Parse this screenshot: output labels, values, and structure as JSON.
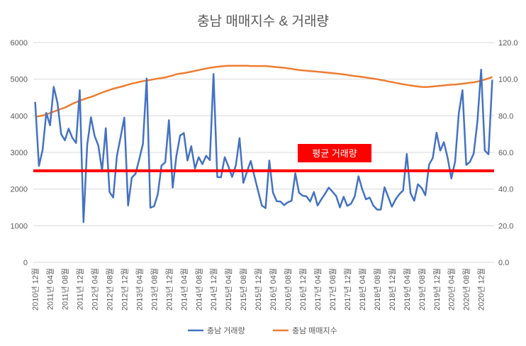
{
  "chart_data": {
    "type": "line",
    "title": "충남 매매지수 & 거래량",
    "x_tick_labels": [
      "2010년 12월",
      "2011년 04월",
      "2011년 08월",
      "2011년 12월",
      "2012년 04월",
      "2012년 08월",
      "2012년 12월",
      "2013년 04월",
      "2013년 08월",
      "2013년 12월",
      "2014년 04월",
      "2014년 08월",
      "2014년 12월",
      "2015년 04월",
      "2015년 08월",
      "2015년 12월",
      "2016년 04월",
      "2016년 08월",
      "2016년 12월",
      "2017년 04월",
      "2017년 08월",
      "2017년 12월",
      "2018년 04월",
      "2018년 08월",
      "2018년 12월",
      "2019년 04월",
      "2019년 08월",
      "2019년 12월",
      "2020년 04월",
      "2020년 08월",
      "2020년 12월"
    ],
    "y_left": {
      "ticks": [
        "0",
        "1000",
        "2000",
        "3000",
        "4000",
        "5000",
        "6000"
      ],
      "ylim": [
        0,
        6000
      ]
    },
    "y_right": {
      "ticks": [
        "0.0",
        "20.0",
        "40.0",
        "60.0",
        "80.0",
        "100.0",
        "120.0"
      ],
      "ylim": [
        0,
        120
      ]
    },
    "series": [
      {
        "name": "충남 거래량",
        "axis": "left",
        "color": "#4472C4",
        "values": [
          4380,
          2630,
          3070,
          4080,
          3740,
          4790,
          4350,
          3500,
          3330,
          3650,
          3400,
          3260,
          4700,
          1100,
          3200,
          3960,
          3450,
          3190,
          2500,
          3660,
          1920,
          1770,
          2900,
          3430,
          3950,
          1550,
          2310,
          2420,
          2810,
          3230,
          5020,
          1490,
          1530,
          1860,
          2640,
          2730,
          3880,
          2040,
          2900,
          3460,
          3530,
          2780,
          3170,
          2560,
          2870,
          2680,
          2910,
          2790,
          5140,
          2330,
          2320,
          2870,
          2620,
          2330,
          2650,
          3390,
          2170,
          2470,
          2770,
          2350,
          1950,
          1550,
          1480,
          2780,
          1900,
          1670,
          1660,
          1560,
          1640,
          1680,
          2430,
          1900,
          1820,
          1800,
          1660,
          1920,
          1550,
          1720,
          1870,
          2040,
          1930,
          1810,
          1500,
          1790,
          1540,
          1600,
          1800,
          2350,
          2000,
          1720,
          1770,
          1550,
          1440,
          1440,
          2050,
          1790,
          1520,
          1720,
          1860,
          1960,
          2960,
          1890,
          1680,
          2130,
          2030,
          1830,
          2670,
          2850,
          3540,
          3050,
          3280,
          2850,
          2290,
          2750,
          4070,
          4700,
          2660,
          2740,
          2970,
          3830,
          5260,
          3050,
          2950,
          4980
        ]
      },
      {
        "name": "충남 매매지수",
        "axis": "right",
        "color": "#ED7D31",
        "values": [
          79.6,
          79.8,
          80.2,
          80.7,
          81.5,
          82.3,
          83.0,
          83.8,
          84.5,
          85.5,
          86.5,
          87.4,
          88.3,
          89.0,
          89.7,
          90.3,
          91.0,
          91.9,
          92.7,
          93.4,
          94.1,
          94.8,
          95.3,
          95.8,
          96.4,
          97.0,
          97.6,
          98.0,
          98.5,
          98.9,
          99.2,
          99.6,
          100.0,
          100.3,
          100.6,
          101.0,
          101.5,
          102.0,
          102.7,
          103.0,
          103.3,
          103.7,
          104.1,
          104.5,
          105.0,
          105.4,
          105.8,
          106.2,
          106.5,
          106.8,
          107.0,
          107.2,
          107.3,
          107.3,
          107.3,
          107.3,
          107.3,
          107.3,
          107.2,
          107.2,
          107.2,
          107.2,
          107.2,
          107.0,
          106.8,
          106.6,
          106.4,
          106.2,
          105.9,
          105.6,
          105.3,
          105.0,
          104.8,
          104.6,
          104.4,
          104.3,
          104.1,
          103.9,
          103.7,
          103.5,
          103.3,
          103.1,
          102.9,
          102.6,
          102.3,
          102.0,
          101.7,
          101.5,
          101.2,
          100.9,
          100.6,
          100.3,
          100.0,
          99.6,
          99.2,
          98.8,
          98.4,
          98.0,
          97.6,
          97.2,
          96.9,
          96.6,
          96.3,
          96.0,
          95.8,
          95.7,
          95.8,
          96.0,
          96.2,
          96.4,
          96.6,
          96.8,
          97.0,
          97.1,
          97.3,
          97.5,
          97.8,
          98.0,
          98.3,
          98.7,
          99.2,
          99.8,
          100.4,
          101.2
        ]
      }
    ],
    "reference_line": {
      "value": 2500,
      "axis": "left",
      "color": "#FF0000",
      "label": "평균 거래량"
    },
    "legend": {
      "position": "bottom",
      "entries": [
        "충남 거래량",
        "충남 매매지수"
      ]
    },
    "grid": true
  }
}
